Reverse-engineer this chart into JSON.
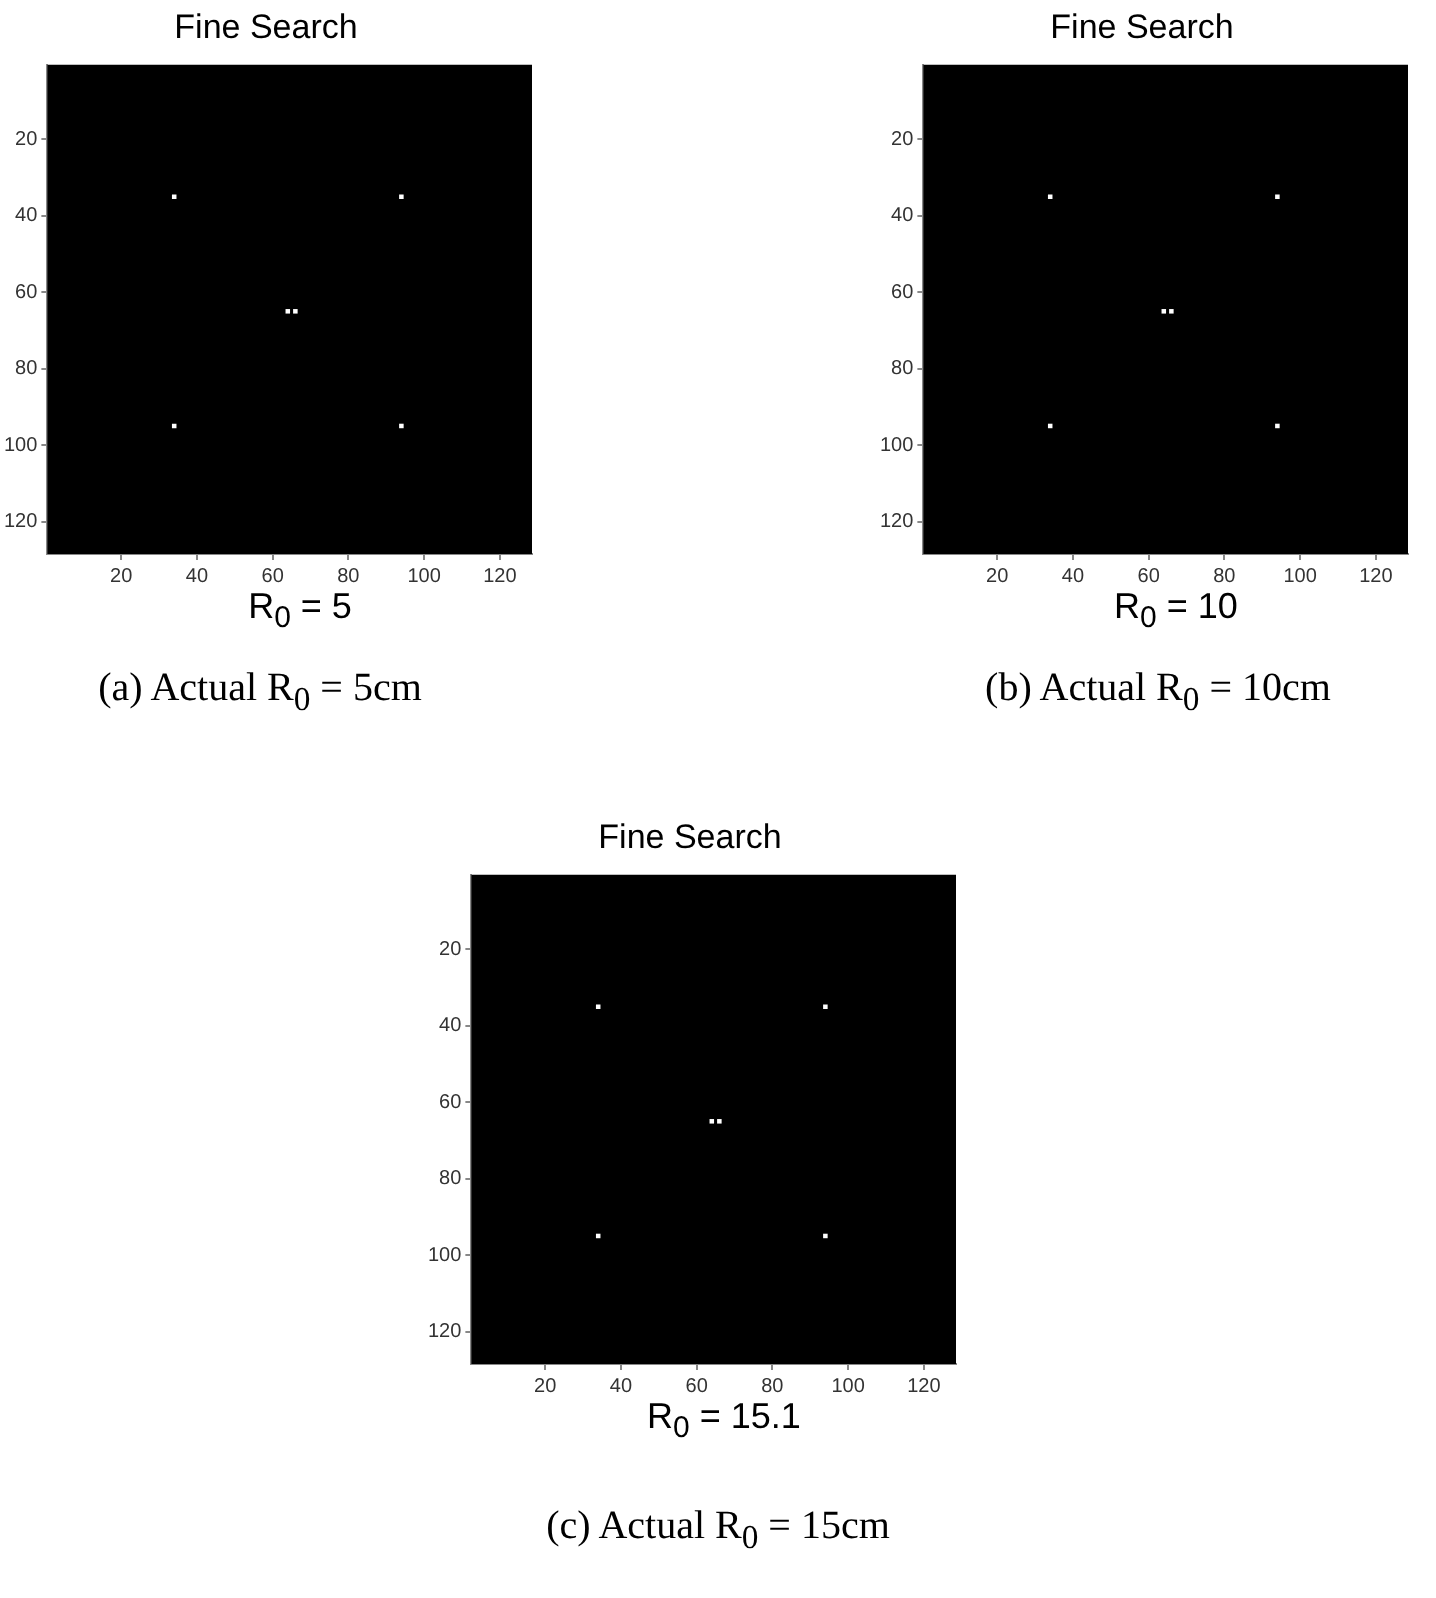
{
  "chart_data": [
    {
      "type": "scatter",
      "title": "Fine Search",
      "xlabel": "R$_{0}$ = 5",
      "annotations": [
        "(a) Actual R$_{0}$ = 5cm"
      ],
      "marker": "square",
      "grid": false,
      "series": [
        {
          "color": "#ffffff",
          "x": [
            34,
            94,
            64,
            66,
            34,
            94
          ],
          "values": [
            35,
            35,
            65,
            65,
            95,
            95
          ]
        }
      ],
      "xlim": [
        0.5,
        128.5
      ],
      "ylim": [
        128.5,
        0.5
      ],
      "xticks": [
        20,
        40,
        60,
        80,
        100,
        120
      ],
      "yticks": [
        20,
        40,
        60,
        80,
        100,
        120
      ]
    },
    {
      "type": "scatter",
      "title": "Fine Search",
      "xlabel": "R$_{0}$ = 10",
      "annotations": [
        "(b) Actual R$_{0}$ = 10cm"
      ],
      "marker": "square",
      "grid": false,
      "series": [
        {
          "color": "#ffffff",
          "x": [
            34,
            94,
            64,
            66,
            34,
            94
          ],
          "values": [
            35,
            35,
            65,
            65,
            95,
            95
          ]
        }
      ],
      "xlim": [
        0.5,
        128.5
      ],
      "ylim": [
        128.5,
        0.5
      ],
      "xticks": [
        20,
        40,
        60,
        80,
        100,
        120
      ],
      "yticks": [
        20,
        40,
        60,
        80,
        100,
        120
      ]
    },
    {
      "type": "scatter",
      "title": "Fine Search",
      "xlabel": "R$_{0}$ = 15.1",
      "annotations": [
        "(c) Actual R$_{0}$ = 15cm"
      ],
      "marker": "square",
      "grid": false,
      "series": [
        {
          "color": "#ffffff",
          "x": [
            34,
            94,
            64,
            66,
            34,
            94
          ],
          "values": [
            35,
            35,
            65,
            65,
            95,
            95
          ]
        }
      ],
      "xlim": [
        0.5,
        128.5
      ],
      "ylim": [
        128.5,
        0.5
      ],
      "xticks": [
        20,
        40,
        60,
        80,
        100,
        120
      ],
      "yticks": [
        20,
        40,
        60,
        80,
        100,
        120
      ]
    }
  ]
}
